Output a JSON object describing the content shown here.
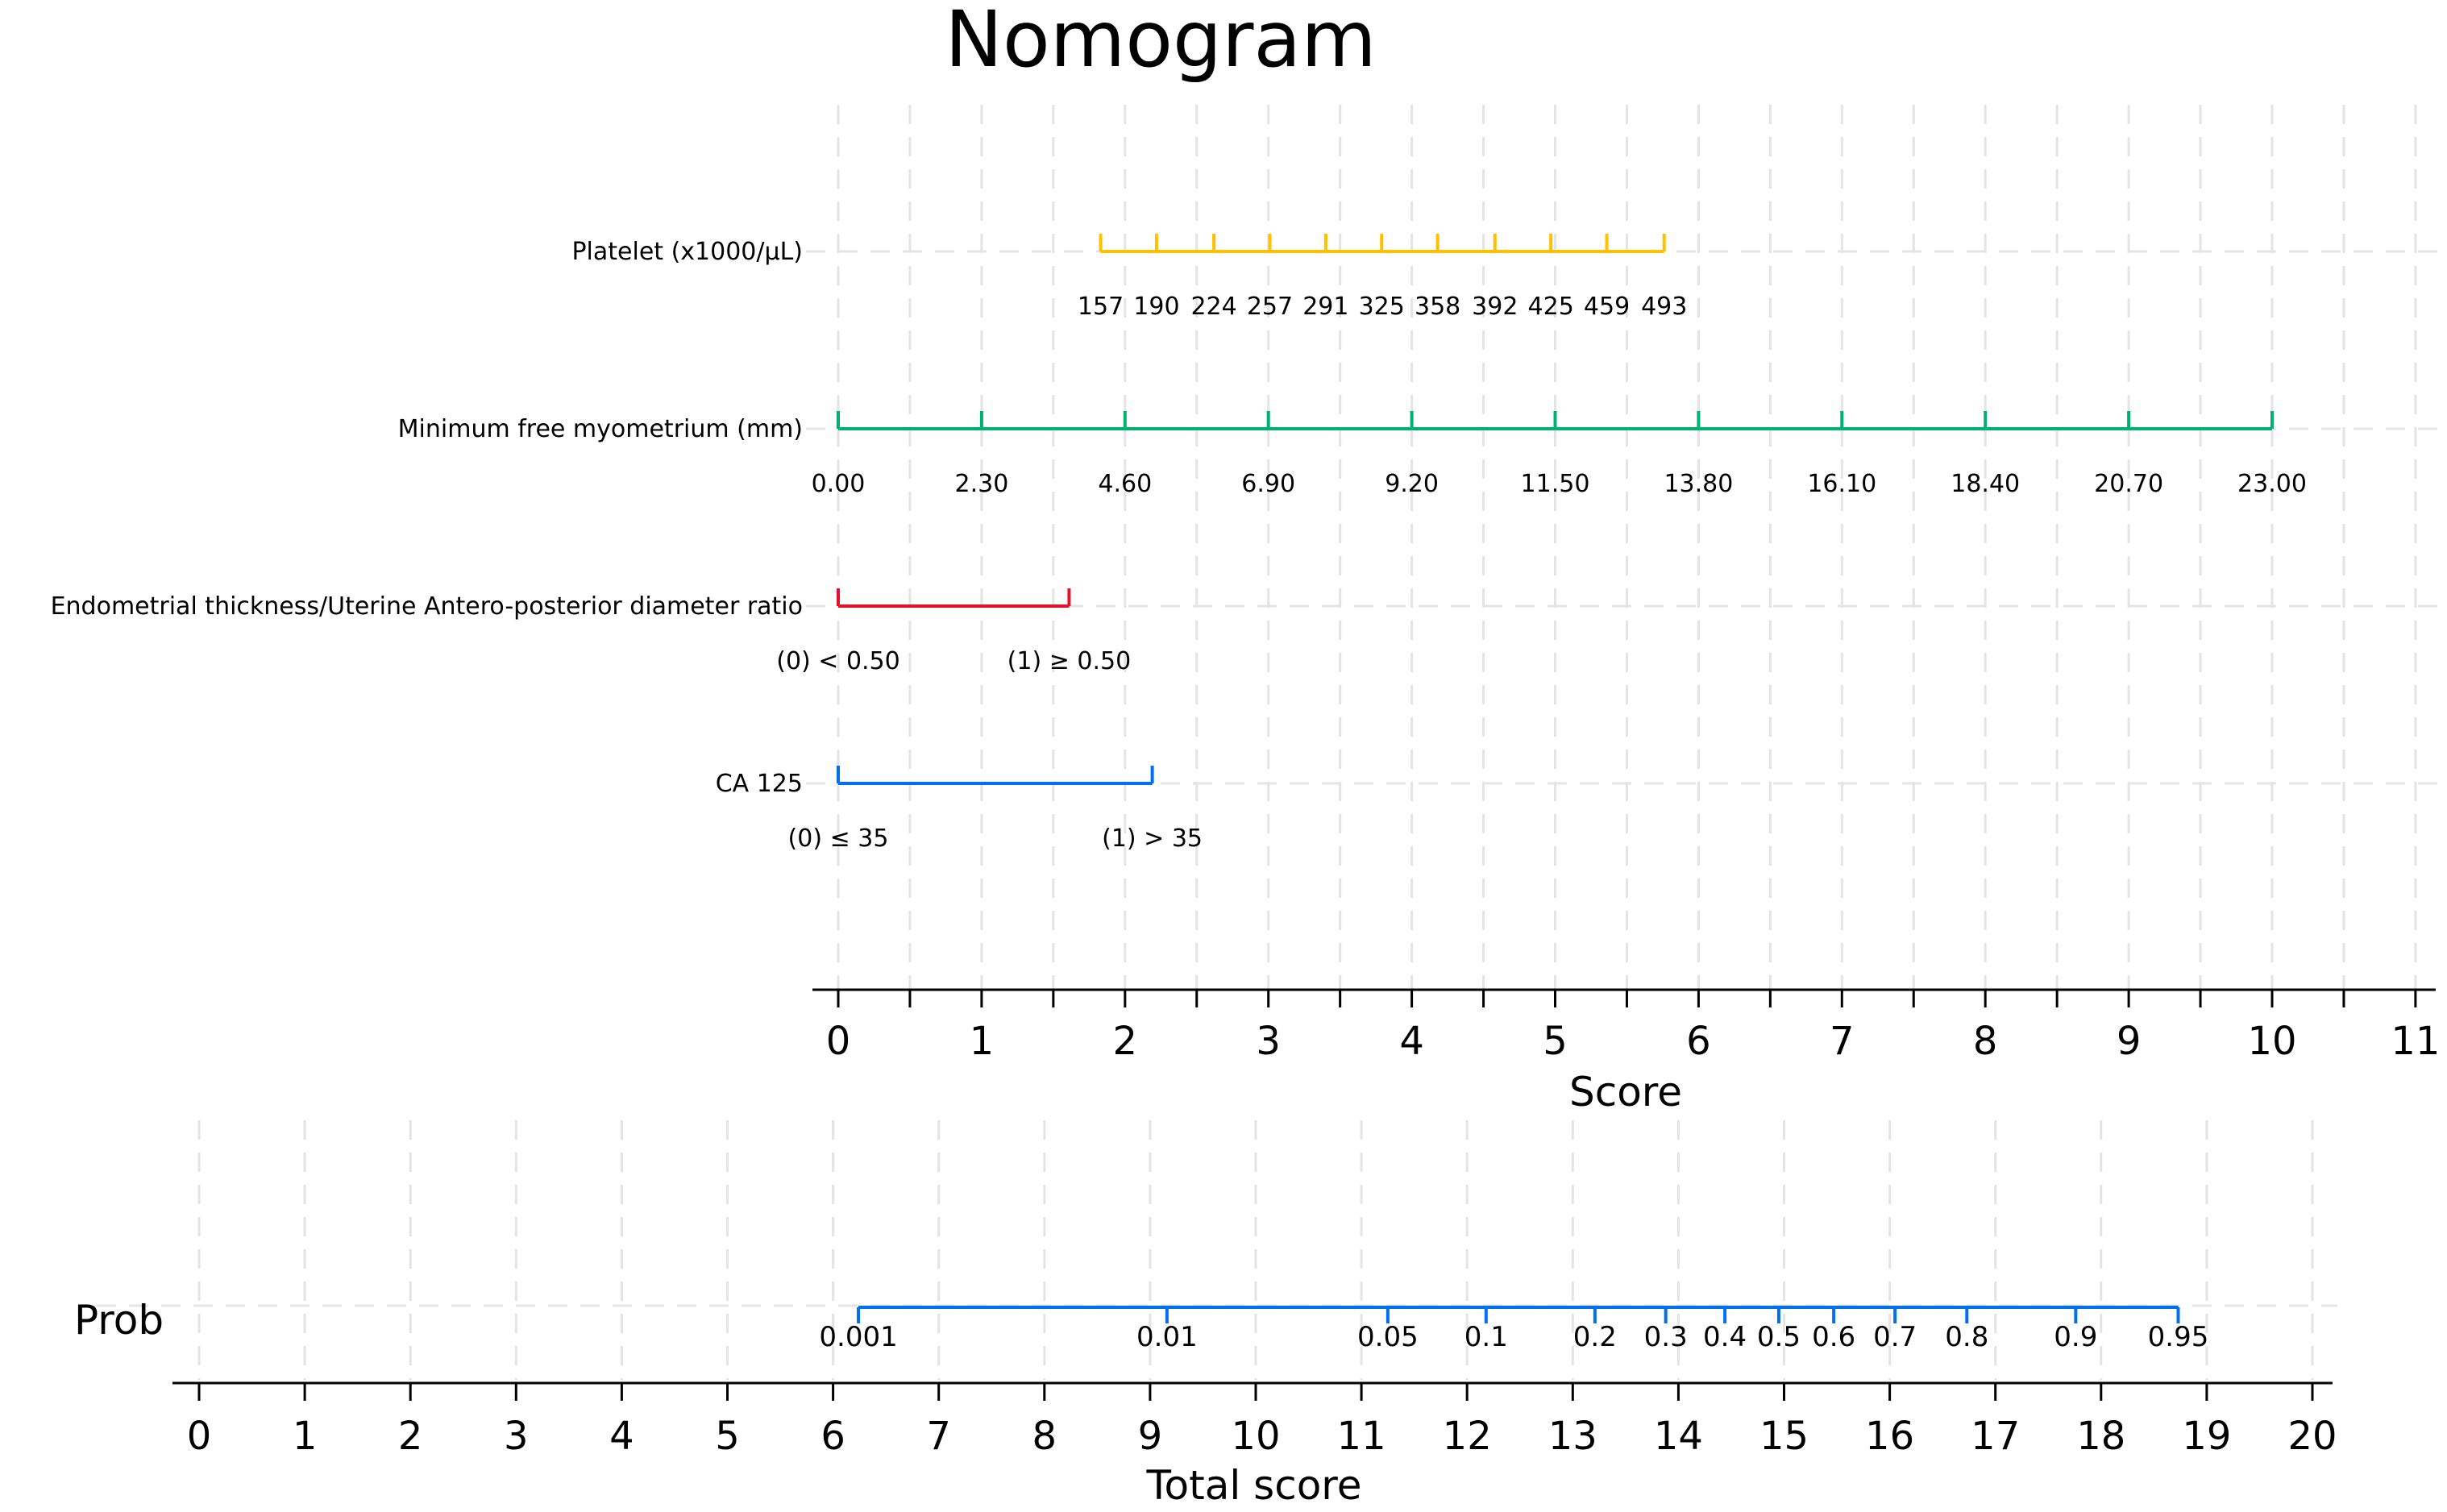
{
  "chart_data": {
    "type": "nomogram",
    "title": "Nomogram",
    "points_axis": {
      "label": "Score",
      "range": [
        0,
        11
      ],
      "ticks": [
        0,
        1,
        2,
        3,
        4,
        5,
        6,
        7,
        8,
        9,
        10,
        11
      ],
      "minor_step": 0.5
    },
    "variables": [
      {
        "name": "Platelet (x1000/µL)",
        "color": "#FFC000",
        "ticks": [
          {
            "label": "157",
            "score": 1.83
          },
          {
            "label": "190",
            "score": 2.22
          },
          {
            "label": "224",
            "score": 2.62
          },
          {
            "label": "257",
            "score": 3.01
          },
          {
            "label": "291",
            "score": 3.4
          },
          {
            "label": "325",
            "score": 3.79
          },
          {
            "label": "358",
            "score": 4.18
          },
          {
            "label": "392",
            "score": 4.58
          },
          {
            "label": "425",
            "score": 4.97
          },
          {
            "label": "459",
            "score": 5.36
          },
          {
            "label": "493",
            "score": 5.76
          }
        ]
      },
      {
        "name": "Minimum free myometrium (mm)",
        "color": "#00B070",
        "ticks": [
          {
            "label": "0.00",
            "score": 0
          },
          {
            "label": "2.30",
            "score": 1
          },
          {
            "label": "4.60",
            "score": 2
          },
          {
            "label": "6.90",
            "score": 3
          },
          {
            "label": "9.20",
            "score": 4
          },
          {
            "label": "11.50",
            "score": 5
          },
          {
            "label": "13.80",
            "score": 6
          },
          {
            "label": "16.10",
            "score": 7
          },
          {
            "label": "18.40",
            "score": 8
          },
          {
            "label": "20.70",
            "score": 9
          },
          {
            "label": "23.00",
            "score": 10
          }
        ]
      },
      {
        "name": "Endometrial thickness/Uterine Antero-posterior diameter ratio",
        "color": "#E8112D",
        "ticks": [
          {
            "label": "(0) < 0.50",
            "score": 0
          },
          {
            "label": "(1) ≥ 0.50",
            "score": 1.61
          }
        ]
      },
      {
        "name": "CA 125",
        "color": "#0070F0",
        "ticks": [
          {
            "label": "(0) ≤ 35",
            "score": 0
          },
          {
            "label": "(1) > 35",
            "score": 2.19
          }
        ]
      }
    ],
    "probability": {
      "name": "Prob",
      "color": "#0070F0",
      "ticks": [
        {
          "label": "0.001",
          "total": 6.24
        },
        {
          "label": "0.01",
          "total": 9.16
        },
        {
          "label": "0.05",
          "total": 11.25
        },
        {
          "label": "0.1",
          "total": 12.18
        },
        {
          "label": "0.2",
          "total": 13.21
        },
        {
          "label": "0.3",
          "total": 13.88
        },
        {
          "label": "0.4",
          "total": 14.44
        },
        {
          "label": "0.5",
          "total": 14.95
        },
        {
          "label": "0.6",
          "total": 15.47
        },
        {
          "label": "0.7",
          "total": 16.05
        },
        {
          "label": "0.8",
          "total": 16.73
        },
        {
          "label": "0.9",
          "total": 17.76
        },
        {
          "label": "0.95",
          "total": 18.73
        }
      ]
    },
    "total_axis": {
      "label": "Total score",
      "range": [
        0,
        20
      ],
      "ticks": [
        0,
        1,
        2,
        3,
        4,
        5,
        6,
        7,
        8,
        9,
        10,
        11,
        12,
        13,
        14,
        15,
        16,
        17,
        18,
        19,
        20
      ]
    },
    "grid": true
  }
}
